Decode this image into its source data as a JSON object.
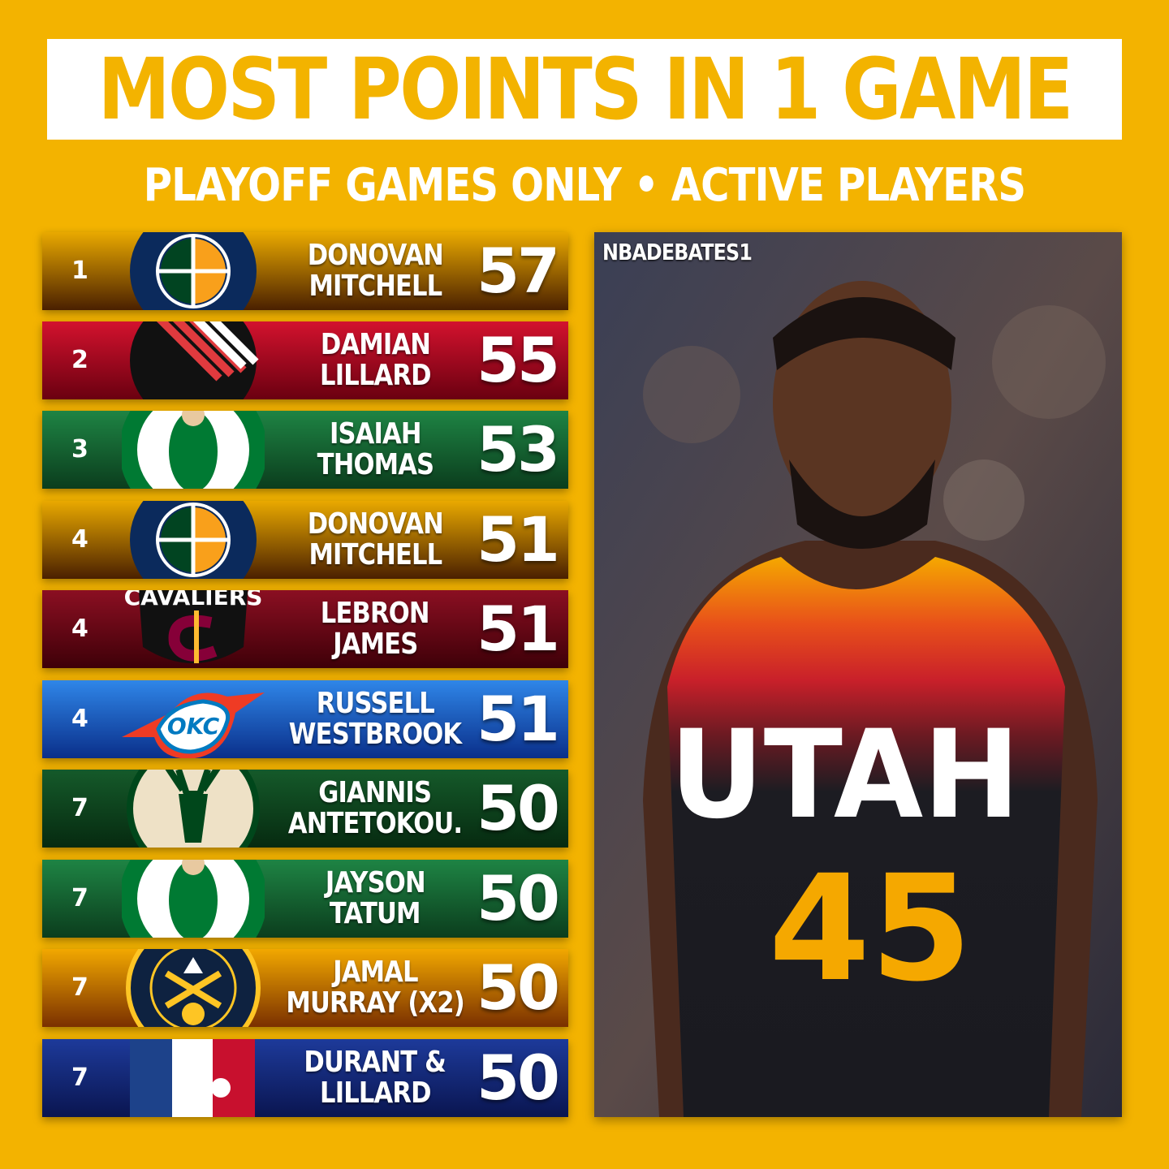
{
  "header": {
    "title": "MOST POINTS IN 1 GAME",
    "subtitle": "PLAYOFF GAMES ONLY • ACTIVE PLAYERS"
  },
  "colors": {
    "background": "#F3B300",
    "title_text": "#F3B300"
  },
  "rows": [
    {
      "rank": "1",
      "first": "DONOVAN",
      "last": "MITCHELL",
      "points": "57",
      "team_logo": "utah-jazz-logo",
      "colors": [
        "#E9A900",
        "#4a2000"
      ]
    },
    {
      "rank": "2",
      "first": "DAMIAN",
      "last": "LILLARD",
      "points": "55",
      "team_logo": "portland-trail-blazers-logo",
      "colors": [
        "#D3122E",
        "#6a0010"
      ]
    },
    {
      "rank": "3",
      "first": "ISAIAH",
      "last": "THOMAS",
      "points": "53",
      "team_logo": "boston-celtics-logo",
      "colors": [
        "#1E8444",
        "#0b3d1d"
      ]
    },
    {
      "rank": "4",
      "first": "DONOVAN",
      "last": "MITCHELL",
      "points": "51",
      "team_logo": "utah-jazz-logo",
      "colors": [
        "#E9A900",
        "#4a2000"
      ]
    },
    {
      "rank": "4",
      "first": "LEBRON",
      "last": "JAMES",
      "points": "51",
      "team_logo": "cleveland-cavaliers-logo",
      "colors": [
        "#8B0F22",
        "#3e0008"
      ]
    },
    {
      "rank": "4",
      "first": "RUSSELL",
      "last": "WESTBROOK",
      "points": "51",
      "team_logo": "okc-thunder-logo",
      "colors": [
        "#2F86E8",
        "#0a2f8a"
      ]
    },
    {
      "rank": "7",
      "first": "GIANNIS",
      "last": "ANTETOKOU.",
      "points": "50",
      "team_logo": "milwaukee-bucks-logo",
      "colors": [
        "#155a2a",
        "#062a10"
      ]
    },
    {
      "rank": "7",
      "first": "JAYSON",
      "last": "TATUM",
      "points": "50",
      "team_logo": "boston-celtics-logo",
      "colors": [
        "#1E8444",
        "#0b3d1d"
      ]
    },
    {
      "rank": "7",
      "first": "JAMAL",
      "last": "MURRAY (X2)",
      "points": "50",
      "team_logo": "denver-nuggets-logo",
      "colors": [
        "#F2A800",
        "#7a3000"
      ]
    },
    {
      "rank": "7",
      "first": "DURANT &",
      "last": "LILLARD",
      "points": "50",
      "team_logo": "nba-logo",
      "colors": [
        "#1d3a9a",
        "#0a1550"
      ]
    }
  ],
  "photo": {
    "watermark": "NBADEBATES1",
    "jersey_text": "UTAH",
    "jersey_number": "45"
  }
}
